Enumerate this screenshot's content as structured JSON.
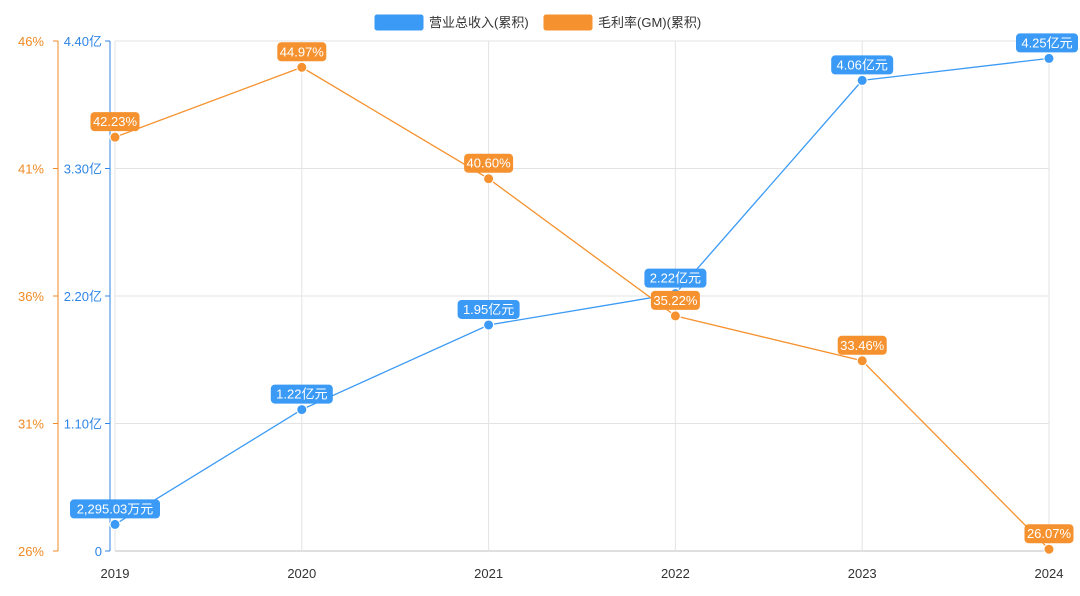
{
  "chart_data": {
    "type": "line",
    "categories": [
      "2019",
      "2020",
      "2021",
      "2022",
      "2023",
      "2024"
    ],
    "series": [
      {
        "name": "营业总收入(累积)",
        "color": "#3a9af5",
        "axis": "left",
        "values": [
          0.2295,
          1.22,
          1.95,
          2.22,
          4.06,
          4.25
        ],
        "labels": [
          "2,295.03万元",
          "1.22亿元",
          "1.95亿元",
          "2.22亿元",
          "4.06亿元",
          "4.25亿元"
        ]
      },
      {
        "name": "毛利率(GM)(累积)",
        "color": "#f5922f",
        "axis": "right",
        "values": [
          42.23,
          44.97,
          40.6,
          35.22,
          33.46,
          26.07
        ],
        "labels": [
          "42.23%",
          "44.97%",
          "40.60%",
          "35.22%",
          "33.46%",
          "26.07%"
        ]
      }
    ],
    "y_axis_revenue": {
      "ticks": [
        0,
        1.1,
        2.2,
        3.3,
        4.4
      ],
      "tick_labels": [
        "0",
        "1.10亿",
        "2.20亿",
        "3.30亿",
        "4.40亿"
      ],
      "ylim": [
        0,
        4.4
      ],
      "color": "#2f86e6"
    },
    "y_axis_margin": {
      "ticks": [
        26,
        31,
        36,
        41,
        46
      ],
      "tick_labels": [
        "26%",
        "31%",
        "36%",
        "41%",
        "46%"
      ],
      "ylim": [
        26,
        46
      ],
      "color": "#f08a24"
    },
    "grid": true,
    "legend": "top-center",
    "title": "",
    "xlabel": "",
    "ylabel": ""
  }
}
